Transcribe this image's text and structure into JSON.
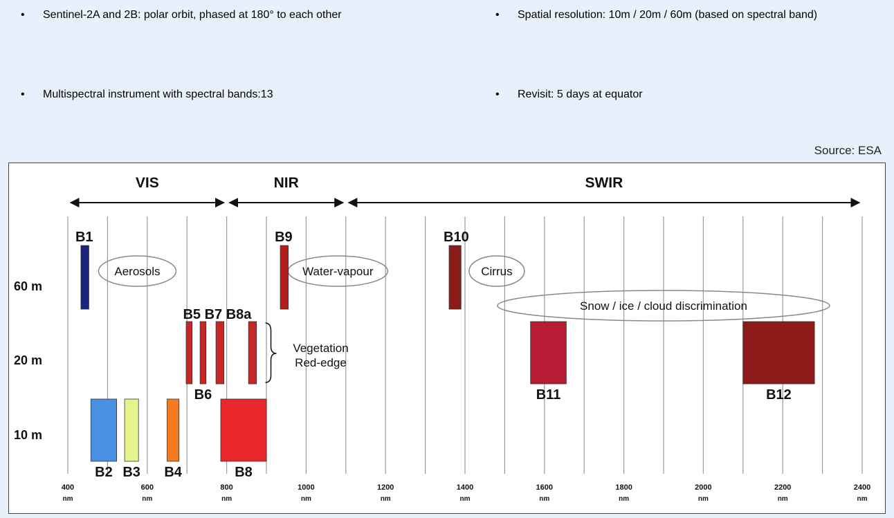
{
  "bullets": {
    "b1": "Sentinel-2A and 2B: polar orbit, phased at 180° to each other",
    "b2": "Multispectral instrument with spectral bands:13",
    "b3": "Spatial resolution: 10m / 20m / 60m (based on spectral band)",
    "b4": "Revisit: 5 days at equator",
    "marker": "•"
  },
  "source": "Source: ESA",
  "diagram": {
    "regions": [
      {
        "label": "VIS",
        "from": 400,
        "to": 800
      },
      {
        "label": "NIR",
        "from": 800,
        "to": 1100
      },
      {
        "label": "SWIR",
        "from": 1100,
        "to": 2400
      }
    ],
    "resolution_labels": [
      "60 m",
      "20 m",
      "10 m"
    ],
    "axis_ticks": [
      {
        "value": "400",
        "unit": "nm"
      },
      {
        "value": "600",
        "unit": "nm"
      },
      {
        "value": "800",
        "unit": "nm"
      },
      {
        "value": "1000",
        "unit": "nm"
      },
      {
        "value": "1200",
        "unit": "nm"
      },
      {
        "value": "1400",
        "unit": "nm"
      },
      {
        "value": "1600",
        "unit": "nm"
      },
      {
        "value": "1800",
        "unit": "nm"
      },
      {
        "value": "2000",
        "unit": "nm"
      },
      {
        "value": "2200",
        "unit": "nm"
      },
      {
        "value": "2400",
        "unit": "nm"
      }
    ],
    "bands": [
      {
        "name": "B1",
        "resolution": "60 m",
        "from": 433,
        "to": 453,
        "color": "#1a237e"
      },
      {
        "name": "B9",
        "resolution": "60 m",
        "from": 935,
        "to": 955,
        "color": "#b71c1c"
      },
      {
        "name": "B10",
        "resolution": "60 m",
        "from": 1360,
        "to": 1390,
        "color": "#8b1a1a"
      },
      {
        "name": "B5",
        "resolution": "20 m",
        "from": 698,
        "to": 713,
        "color": "#c62828"
      },
      {
        "name": "B6",
        "resolution": "20 m",
        "from": 733,
        "to": 748,
        "color": "#c62828"
      },
      {
        "name": "B7",
        "resolution": "20 m",
        "from": 773,
        "to": 793,
        "color": "#c62828"
      },
      {
        "name": "B8a",
        "resolution": "20 m",
        "from": 855,
        "to": 875,
        "color": "#c62828"
      },
      {
        "name": "B11",
        "resolution": "20 m",
        "from": 1565,
        "to": 1655,
        "color": "#b71c34"
      },
      {
        "name": "B12",
        "resolution": "20 m",
        "from": 2100,
        "to": 2280,
        "color": "#8e1a1a"
      },
      {
        "name": "B2",
        "resolution": "10 m",
        "from": 458,
        "to": 523,
        "color": "#4a90e2"
      },
      {
        "name": "B3",
        "resolution": "10 m",
        "from": 543,
        "to": 578,
        "color": "#e6f28c"
      },
      {
        "name": "B4",
        "resolution": "10 m",
        "from": 650,
        "to": 680,
        "color": "#f47b20"
      },
      {
        "name": "B8",
        "resolution": "10 m",
        "from": 785,
        "to": 900,
        "color": "#e8282a"
      }
    ],
    "annotations": {
      "aerosols": "Aerosols",
      "water_vapour": "Water-vapour",
      "cirrus": "Cirrus",
      "snow": "Snow / ice / cloud discrimination",
      "vegetation_line1": "Vegetation",
      "vegetation_line2": "Red-edge",
      "b5_b7_b8a_header": "B5  B7  B8a"
    }
  }
}
